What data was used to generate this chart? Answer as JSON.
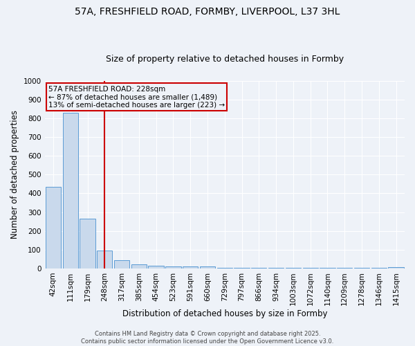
{
  "title_line1": "57A, FRESHFIELD ROAD, FORMBY, LIVERPOOL, L37 3HL",
  "title_line2": "Size of property relative to detached houses in Formby",
  "xlabel": "Distribution of detached houses by size in Formby",
  "ylabel": "Number of detached properties",
  "categories": [
    "42sqm",
    "111sqm",
    "179sqm",
    "248sqm",
    "317sqm",
    "385sqm",
    "454sqm",
    "523sqm",
    "591sqm",
    "660sqm",
    "729sqm",
    "797sqm",
    "866sqm",
    "934sqm",
    "1003sqm",
    "1072sqm",
    "1140sqm",
    "1209sqm",
    "1278sqm",
    "1346sqm",
    "1415sqm"
  ],
  "values": [
    435,
    830,
    265,
    95,
    45,
    20,
    13,
    10,
    10,
    10,
    2,
    2,
    2,
    2,
    2,
    2,
    2,
    2,
    2,
    2,
    8
  ],
  "bar_color": "#c9d9ec",
  "bar_edge_color": "#5b9bd5",
  "vline_x_index": 3,
  "vline_color": "#cc0000",
  "ylim": [
    0,
    1000
  ],
  "yticks": [
    0,
    100,
    200,
    300,
    400,
    500,
    600,
    700,
    800,
    900,
    1000
  ],
  "annotation_text": "57A FRESHFIELD ROAD: 228sqm\n← 87% of detached houses are smaller (1,489)\n13% of semi-detached houses are larger (223) →",
  "annotation_box_color": "#cc0000",
  "background_color": "#eef2f8",
  "grid_color": "#ffffff",
  "footer_text": "Contains HM Land Registry data © Crown copyright and database right 2025.\nContains public sector information licensed under the Open Government Licence v3.0.",
  "title_fontsize": 10,
  "subtitle_fontsize": 9,
  "tick_fontsize": 7.5,
  "axis_label_fontsize": 8.5,
  "annotation_fontsize": 7.5,
  "footer_fontsize": 6
}
